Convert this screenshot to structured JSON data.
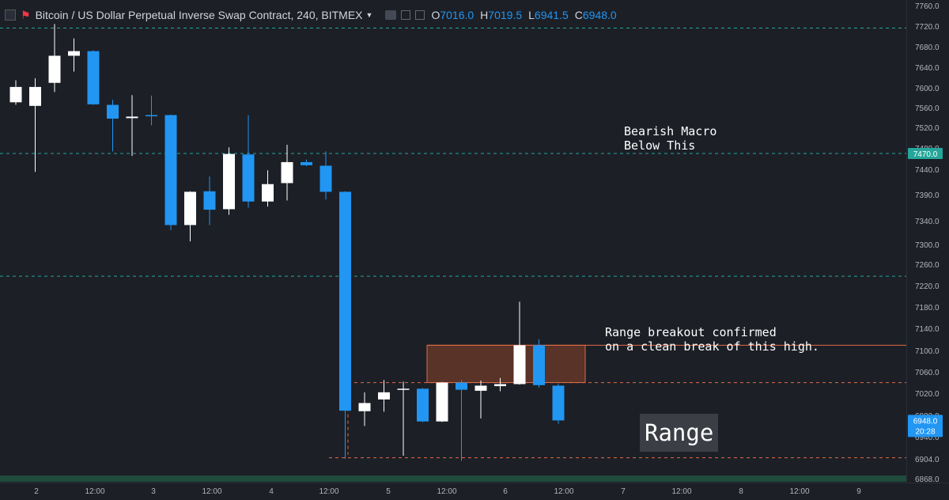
{
  "header": {
    "title": "Bitcoin / US Dollar Perpetual Inverse Swap Contract, 240, BITMEX",
    "ohlc": [
      {
        "key": "O",
        "value": "7016.0"
      },
      {
        "key": "H",
        "value": "7019.5"
      },
      {
        "key": "L",
        "value": "6941.5"
      },
      {
        "key": "C",
        "value": "6948.0"
      }
    ]
  },
  "colors": {
    "background": "#1c1f26",
    "up": "#ffffff",
    "down": "#2196f3",
    "level_line": "#26a69a",
    "range_line": "#e06c47",
    "zone_fill": "#6e3a2a",
    "price_badge": "#2196f3"
  },
  "annotations": {
    "bearish": "Bearish Macro\nBelow This",
    "breakout": "Range breakout confirmed\non a clean break of this high.",
    "range": "Range"
  },
  "price_badges": {
    "level": "7470.0",
    "last": "6948.0",
    "countdown": "20:28"
  },
  "chart_data": {
    "type": "candlestick",
    "title": "Bitcoin / US Dollar Perpetual Inverse Swap Contract, 240, BITMEX",
    "ylim": [
      6845,
      7770
    ],
    "y_ticks": [
      "7760.0",
      "7720.0",
      "7680.0",
      "7640.0",
      "7600.0",
      "7560.0",
      "7520.0",
      "7480.0",
      "7440.0",
      "7390.0",
      "7340.0",
      "7300.0",
      "7260.0",
      "7220.0",
      "7180.0",
      "7140.0",
      "7100.0",
      "7060.0",
      "7020.0",
      "6980.0",
      "6940.0",
      "6904.0",
      "6868.0"
    ],
    "x_ticks": [
      "2",
      "12:00",
      "3",
      "12:00",
      "4",
      "12:00",
      "5",
      "12:00",
      "6",
      "12:00",
      "7",
      "12:00",
      "8",
      "12:00",
      "9"
    ],
    "candles": [
      {
        "o": 7570,
        "h": 7613,
        "l": 7565,
        "c": 7600
      },
      {
        "o": 7563,
        "h": 7617,
        "l": 7434,
        "c": 7600
      },
      {
        "o": 7608,
        "h": 7723,
        "l": 7590,
        "c": 7661
      },
      {
        "o": 7661,
        "h": 7695,
        "l": 7630,
        "c": 7670
      },
      {
        "o": 7670,
        "h": 7672,
        "l": 7565,
        "c": 7566
      },
      {
        "o": 7565,
        "h": 7575,
        "l": 7474,
        "c": 7538
      },
      {
        "o": 7539,
        "h": 7584,
        "l": 7465,
        "c": 7542
      },
      {
        "o": 7545,
        "h": 7583,
        "l": 7525,
        "c": 7544
      },
      {
        "o": 7545,
        "h": 7546,
        "l": 7320,
        "c": 7330
      },
      {
        "o": 7330,
        "h": 7396,
        "l": 7298,
        "c": 7395
      },
      {
        "o": 7396,
        "h": 7425,
        "l": 7330,
        "c": 7360
      },
      {
        "o": 7361,
        "h": 7482,
        "l": 7350,
        "c": 7469
      },
      {
        "o": 7468,
        "h": 7545,
        "l": 7364,
        "c": 7376
      },
      {
        "o": 7376,
        "h": 7437,
        "l": 7366,
        "c": 7410
      },
      {
        "o": 7412,
        "h": 7487,
        "l": 7378,
        "c": 7453
      },
      {
        "o": 7453,
        "h": 7458,
        "l": 7445,
        "c": 7447
      },
      {
        "o": 7446,
        "h": 7474,
        "l": 7380,
        "c": 7395
      },
      {
        "o": 7395,
        "h": 7396,
        "l": 6873,
        "c": 6967
      },
      {
        "o": 6966,
        "h": 7003,
        "l": 6937,
        "c": 6982
      },
      {
        "o": 6989,
        "h": 7027,
        "l": 6965,
        "c": 7003
      },
      {
        "o": 7008,
        "h": 7024,
        "l": 6879,
        "c": 7010
      },
      {
        "o": 7010,
        "h": 7011,
        "l": 6945,
        "c": 6946
      },
      {
        "o": 6946,
        "h": 7023,
        "l": 6945,
        "c": 7022
      },
      {
        "o": 7022,
        "h": 7027,
        "l": 6869,
        "c": 7008
      },
      {
        "o": 7006,
        "h": 7026,
        "l": 6952,
        "c": 7016
      },
      {
        "o": 7015,
        "h": 7031,
        "l": 7005,
        "c": 7019
      },
      {
        "o": 7019,
        "h": 7180,
        "l": 7018,
        "c": 7095
      },
      {
        "o": 7095,
        "h": 7107,
        "l": 7012,
        "c": 7017
      },
      {
        "o": 7016,
        "h": 7019.5,
        "l": 6941.5,
        "c": 6948
      }
    ],
    "levels": [
      {
        "price": 7715,
        "style": "dashed"
      },
      {
        "price": 7470,
        "style": "dashed"
      },
      {
        "price": 7230,
        "style": "dashed"
      }
    ],
    "range": {
      "high": 7022,
      "low": 6875
    },
    "zone": {
      "high": 7095,
      "low": 7022
    }
  }
}
